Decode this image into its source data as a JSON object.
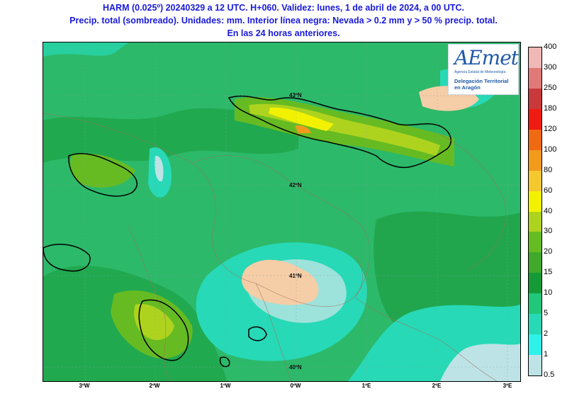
{
  "title": {
    "line1": "HARM (0.025º) 20240329 a 12 UTC. H+060. Validez: lunes, 1 de abril de 2024, a 00 UTC.",
    "line2": "Precip. total (sombreado). Unidades: mm. Interior línea negra: Nevada > 0.2 mm y > 50 % precip. total.",
    "line3": "En las 24 horas anteriores."
  },
  "map": {
    "lat_labels": [
      "43ºN",
      "42ºN",
      "41ºN",
      "40ºN"
    ],
    "lon_labels": [
      "3ºW",
      "2ºW",
      "1ºW",
      "0ºW",
      "1ºE",
      "2ºE",
      "3ºE"
    ]
  },
  "colorbar": {
    "levels": [
      "0.5",
      "1",
      "2",
      "5",
      "10",
      "15",
      "20",
      "30",
      "40",
      "60",
      "80",
      "100",
      "120",
      "180",
      "250",
      "300",
      "400"
    ],
    "colors": [
      "#bde3e6",
      "#2ef2ea",
      "#27d9b6",
      "#21c77a",
      "#169a38",
      "#40a82a",
      "#66bb22",
      "#aed31e",
      "#f2f200",
      "#f5c830",
      "#f29a1c",
      "#ef6a12",
      "#ef1b10",
      "#c9393b",
      "#df7a78",
      "#f0b8b6"
    ]
  },
  "logo": {
    "wordmark": "AEmet",
    "subtitle": "Agencia Estatal de Meteorología",
    "delegation_line1": "Delegación Territorial",
    "delegation_line2": "en Aragón"
  }
}
